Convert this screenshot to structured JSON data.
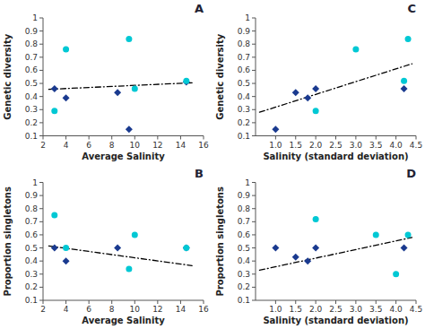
{
  "chart_data": [
    {
      "type": "scatter",
      "title": "A",
      "xlabel": "Average Salinity",
      "ylabel": "Genetic diversity",
      "xlim": [
        2,
        16
      ],
      "ylim": [
        0.1,
        1.0
      ],
      "xticks": [
        2,
        4,
        6,
        8,
        10,
        12,
        14,
        16
      ],
      "yticks": [
        0.1,
        0.2,
        0.3,
        0.4,
        0.5,
        0.6,
        0.7,
        0.8,
        0.9,
        1
      ],
      "grid": false,
      "series": [
        {
          "type": "line",
          "line_style": "dashdot",
          "color": "#000000",
          "x": [
            2.5,
            15.0
          ],
          "values": [
            0.455,
            0.505
          ]
        },
        {
          "type": "scatter",
          "marker": "diamond",
          "color": "#1a3a8f",
          "x": [
            3.0,
            4.0,
            8.5,
            9.5,
            14.5
          ],
          "values": [
            0.46,
            0.39,
            0.43,
            0.15,
            0.51
          ]
        },
        {
          "type": "scatter",
          "marker": "circle",
          "color": "#00c8d4",
          "x": [
            3.0,
            4.0,
            9.5,
            10.0,
            14.5
          ],
          "values": [
            0.29,
            0.76,
            0.84,
            0.46,
            0.52
          ]
        }
      ]
    },
    {
      "type": "scatter",
      "title": "C",
      "xlabel": "Salinity (standard deviation)",
      "ylabel": "Genetic diversity",
      "xlim": [
        0.5,
        4.5
      ],
      "ylim": [
        0.1,
        1.0
      ],
      "xticks": [
        {
          "value": 1.0,
          "label": "1.0"
        },
        1.5,
        {
          "value": 2.0,
          "label": "2.0"
        },
        2.5,
        {
          "value": 3.0,
          "label": "3.0"
        },
        3.5,
        {
          "value": 4.0,
          "label": "4.0"
        },
        4.5
      ],
      "yticks": [
        0.1,
        0.2,
        0.3,
        0.4,
        0.5,
        0.6,
        0.7,
        0.8,
        0.9,
        1
      ],
      "grid": false,
      "series": [
        {
          "type": "line",
          "line_style": "dashdot",
          "color": "#000000",
          "x": [
            0.6,
            4.4
          ],
          "values": [
            0.28,
            0.65
          ]
        },
        {
          "type": "scatter",
          "marker": "diamond",
          "color": "#1a3a8f",
          "x": [
            1.0,
            1.5,
            1.8,
            2.0,
            4.2
          ],
          "values": [
            0.15,
            0.43,
            0.39,
            0.46,
            0.46
          ]
        },
        {
          "type": "scatter",
          "marker": "circle",
          "color": "#00c8d4",
          "x": [
            2.0,
            3.0,
            4.2,
            4.3
          ],
          "values": [
            0.29,
            0.76,
            0.52,
            0.84
          ]
        }
      ]
    },
    {
      "type": "scatter",
      "title": "B",
      "xlabel": "Average Salinity",
      "ylabel": "Proportion singletons",
      "xlim": [
        2,
        16
      ],
      "ylim": [
        0.1,
        1.0
      ],
      "xticks": [
        2,
        4,
        6,
        8,
        10,
        12,
        14,
        16
      ],
      "yticks": [
        0.1,
        0.2,
        0.3,
        0.4,
        0.5,
        0.6,
        0.7,
        0.8,
        0.9,
        1
      ],
      "grid": false,
      "series": [
        {
          "type": "line",
          "line_style": "dashdot",
          "color": "#000000",
          "x": [
            2.5,
            15.0
          ],
          "values": [
            0.515,
            0.365
          ]
        },
        {
          "type": "scatter",
          "marker": "diamond",
          "color": "#1a3a8f",
          "x": [
            3.0,
            4.0,
            8.5,
            14.5
          ],
          "values": [
            0.5,
            0.4,
            0.5,
            0.5
          ]
        },
        {
          "type": "scatter",
          "marker": "circle",
          "color": "#00c8d4",
          "x": [
            3.0,
            4.0,
            9.5,
            10.0,
            14.5
          ],
          "values": [
            0.75,
            0.5,
            0.34,
            0.6,
            0.5
          ]
        }
      ]
    },
    {
      "type": "scatter",
      "title": "D",
      "xlabel": "Salinity (standard deviation)",
      "ylabel": "Proportion singletons",
      "xlim": [
        0.5,
        4.5
      ],
      "ylim": [
        0.1,
        1.0
      ],
      "xticks": [
        {
          "value": 1.0,
          "label": "1.0"
        },
        1.5,
        {
          "value": 2.0,
          "label": "2.0"
        },
        2.5,
        {
          "value": 3.0,
          "label": "3.0"
        },
        3.5,
        {
          "value": 4.0,
          "label": "4.0"
        },
        4.5
      ],
      "yticks": [
        0.1,
        0.2,
        0.3,
        0.4,
        0.5,
        0.6,
        0.7,
        0.8,
        0.9,
        1
      ],
      "grid": false,
      "series": [
        {
          "type": "line",
          "line_style": "dashdot",
          "color": "#000000",
          "x": [
            0.6,
            4.4
          ],
          "values": [
            0.33,
            0.58
          ]
        },
        {
          "type": "scatter",
          "marker": "diamond",
          "color": "#1a3a8f",
          "x": [
            1.0,
            1.5,
            1.8,
            2.0,
            4.2
          ],
          "values": [
            0.5,
            0.43,
            0.4,
            0.5,
            0.5
          ]
        },
        {
          "type": "scatter",
          "marker": "circle",
          "color": "#00c8d4",
          "x": [
            2.0,
            3.5,
            4.0,
            4.3
          ],
          "values": [
            0.72,
            0.6,
            0.3,
            0.6
          ]
        }
      ]
    }
  ]
}
